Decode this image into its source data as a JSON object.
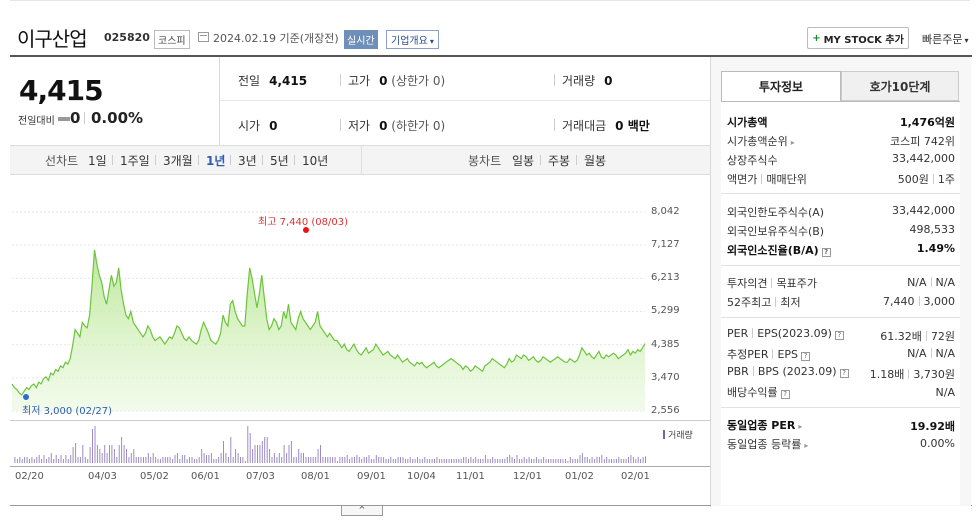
{
  "header": {
    "name": "이구산업",
    "code": "025820",
    "market": "코스피",
    "date_text": "2024.02.19 기준(개장전)",
    "realtime": "실시간",
    "overview": "기업개요",
    "mystock": "MY STOCK 추가",
    "quick_order": "빠른주문"
  },
  "price": {
    "current": "4,415",
    "change_label": "전일대비",
    "change": "0",
    "change_pct": "0.00%"
  },
  "stats": {
    "prev_label": "전일",
    "prev": "4,415",
    "high_label": "고가",
    "high": "0",
    "high_sub": "(상한가 0)",
    "volume_label": "거래량",
    "volume": "0",
    "open_label": "시가",
    "open": "0",
    "low_label": "저가",
    "low": "0",
    "low_sub": "(하한가 0)",
    "amount_label": "거래대금",
    "amount": "0 백만"
  },
  "periods": {
    "line_label": "선차트",
    "items": [
      "1일",
      "1주일",
      "3개월",
      "1년",
      "3년",
      "5년",
      "10년"
    ],
    "active": "1년",
    "candle_label": "봉차트",
    "candle_items": [
      "일봉",
      "주봉",
      "월봉"
    ]
  },
  "chart_data": {
    "type": "area",
    "y_ticks": [
      "8,042",
      "7,127",
      "6,213",
      "5,299",
      "4,385",
      "3,470",
      "2,556"
    ],
    "ylim": [
      2556,
      8042
    ],
    "x_ticks": [
      "02/20",
      "04/03",
      "05/02",
      "06/01",
      "07/03",
      "08/01",
      "09/01",
      "10/04",
      "11/01",
      "12/01",
      "01/02",
      "02/01"
    ],
    "high_annotation": "최고 7,440 (08/03)",
    "low_annotation": "최저 3,000 (02/27)",
    "volume_legend": "거래량",
    "series": [
      {
        "values": [
          3300,
          3200,
          3150,
          3050,
          3000,
          3100,
          3200,
          3150,
          3250,
          3300,
          3200,
          3350,
          3300,
          3450,
          3500,
          3400,
          3600,
          3550,
          3700,
          3650,
          3800,
          3750,
          3900,
          3850,
          4000,
          4350,
          4800,
          4700,
          4600,
          5000,
          4900,
          4850,
          5200,
          6000,
          7000,
          6600,
          6300,
          6100,
          5700,
          5500,
          5900,
          6300,
          6000,
          6100,
          6500,
          5900,
          5500,
          5200,
          5100,
          5300,
          5000,
          4900,
          4800,
          4700,
          4600,
          4700,
          4900,
          4800,
          4600,
          4500,
          4550,
          4600,
          4500,
          4400,
          4500,
          4600,
          4550,
          4700,
          4900,
          4850,
          4700,
          4550,
          4500,
          4600,
          4500,
          4450,
          4400,
          4500,
          4800,
          5000,
          4850,
          4700,
          4500,
          4450,
          4400,
          4500,
          4700,
          5200,
          5000,
          4900,
          5500,
          5600,
          5300,
          5100,
          5000,
          4900,
          4900,
          5800,
          6500,
          6200,
          5800,
          5400,
          5800,
          6300,
          5700,
          5100,
          4800,
          4900,
          5100,
          5000,
          4800,
          4900,
          5300,
          5100,
          5500,
          5000,
          4900,
          4800,
          5100,
          5300,
          5100,
          5000,
          4900,
          4800,
          4900,
          5000,
          5300,
          4900,
          4800,
          4700,
          4600,
          4700,
          4600,
          4500,
          4500,
          4400,
          4300,
          4400,
          4250,
          4200,
          4300,
          4400,
          4250,
          4150,
          4100,
          4200,
          4300,
          4150,
          4200,
          4250,
          4400,
          4300,
          4200,
          4100,
          4150,
          4200,
          4100,
          4050,
          4000,
          4100,
          4000,
          3900,
          3950,
          4000,
          3900,
          3850,
          3800,
          3900,
          3850,
          3900,
          3800,
          3750,
          3800,
          3850,
          3900,
          3800,
          3750,
          3800,
          3850,
          3900,
          3950,
          4000,
          3950,
          3900,
          3850,
          3800,
          3700,
          3800,
          3750,
          3650,
          3700,
          3800,
          3750,
          3700,
          3650,
          3800,
          3850,
          3900,
          4000,
          3950,
          3900,
          3850,
          3800,
          3750,
          3850,
          4000,
          3900,
          3950,
          4100,
          4050,
          4000,
          4100,
          4050,
          3950,
          4000,
          4050,
          3950,
          3900,
          3950,
          4050,
          4000,
          3950,
          3900,
          3950,
          4000,
          4050,
          4000,
          3950,
          3900,
          3900,
          4000,
          3950,
          3900,
          3950,
          4100,
          4300,
          4200,
          4100,
          4150,
          4050,
          4000,
          4100,
          4200,
          4050,
          4000,
          4100,
          4050,
          4100,
          4150,
          4100,
          4000,
          4050,
          4100,
          4150,
          4250,
          4100,
          4200,
          4150,
          4250,
          4200,
          4300,
          4415
        ]
      }
    ]
  },
  "side": {
    "tab_info": "투자정보",
    "tab_orderbook": "호가10단계",
    "rows1": [
      {
        "label": "시가총액",
        "value": "1,476억원"
      },
      {
        "label": "시가총액순위",
        "value": "코스피 742위"
      },
      {
        "label": "상장주식수",
        "value": "33,442,000"
      },
      {
        "label": "액면가",
        "label2": "매매단위",
        "value": "500원",
        "value2": "1주"
      }
    ],
    "rows2": [
      {
        "label": "외국인한도주식수(A)",
        "value": "33,442,000"
      },
      {
        "label": "외국인보유주식수(B)",
        "value": "498,533"
      },
      {
        "label": "외국인소진율(B/A)",
        "value": "1.49%"
      }
    ],
    "rows3": [
      {
        "label": "투자의견",
        "label2": "목표주가",
        "value": "N/A",
        "value2": "N/A"
      },
      {
        "label": "52주최고",
        "label2": "최저",
        "value": "7,440",
        "value2": "3,000"
      }
    ],
    "rows4": [
      {
        "label": "PER",
        "label2": "EPS(2023.09)",
        "value": "61.32배",
        "value2": "72원"
      },
      {
        "label": "추정PER",
        "label2": "EPS",
        "value": "N/A",
        "value2": "N/A"
      },
      {
        "label": "PBR",
        "label2": "BPS (2023.09)",
        "value": "1.18배",
        "value2": "3,730원"
      },
      {
        "label": "배당수익률",
        "value": "N/A"
      }
    ],
    "rows5": [
      {
        "label": "동일업종 PER",
        "value": "19.92배"
      },
      {
        "label": "동일업종 등락률",
        "value": "0.00%"
      }
    ]
  },
  "toggle": "^"
}
